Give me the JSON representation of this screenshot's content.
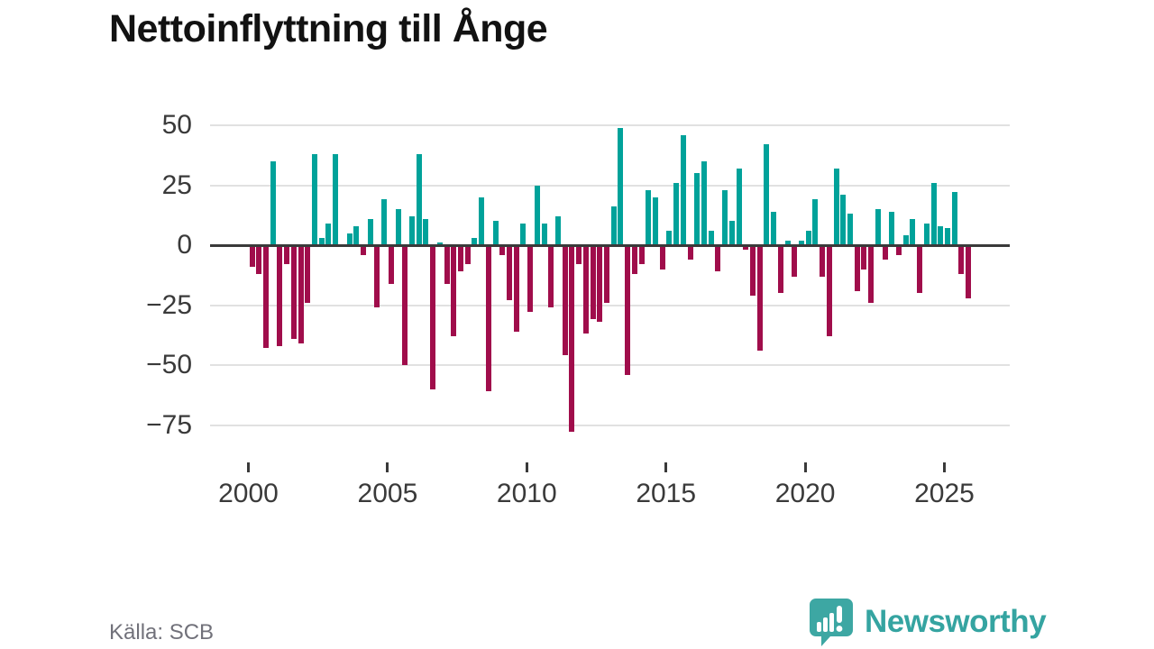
{
  "title": "Nettoinflyttning till Ånge",
  "source": {
    "label": "Källa: SCB"
  },
  "logo": {
    "brand": "Newsworthy",
    "icon": "newsworthy-speech-bubble-chart-icon"
  },
  "colors": {
    "positive": "#00a29a",
    "negative": "#a00d4b",
    "zero_line": "#3a3a3a",
    "gridline": "#e1e1e1",
    "axis_text": "#3a3a3a",
    "title_text": "#121212",
    "source_text": "#71717a",
    "logo_teal": "#35a4a1"
  },
  "chart_data": {
    "type": "bar",
    "title": "Nettoinflyttning till Ånge",
    "frequency": "quarterly",
    "x_start_year": 2000,
    "x_tick_years": [
      2000,
      2005,
      2010,
      2015,
      2020,
      2025
    ],
    "y_ticks": [
      {
        "value": 50,
        "label": "50"
      },
      {
        "value": 25,
        "label": "25"
      },
      {
        "value": 0,
        "label": "0"
      },
      {
        "value": -25,
        "label": "−25"
      },
      {
        "value": -50,
        "label": "−50"
      },
      {
        "value": -75,
        "label": "−75"
      }
    ],
    "ylim": [
      -85,
      55
    ],
    "grid": "horizontal",
    "legend": "none",
    "series_note": "net migration per quarter, teal = positive, dark red = negative",
    "values": [
      -9,
      -12,
      -43,
      35,
      -42,
      -8,
      -39,
      -41,
      -24,
      38,
      3,
      9,
      38,
      0,
      5,
      8,
      -4,
      11,
      -26,
      19,
      -16,
      15,
      -50,
      12,
      38,
      11,
      -60,
      1,
      -16,
      -38,
      -11,
      -8,
      3,
      20,
      -61,
      10,
      -4,
      -23,
      -36,
      9,
      -28,
      25,
      9,
      -26,
      12,
      -46,
      -78,
      -8,
      -37,
      -31,
      -32,
      -24,
      16,
      49,
      -54,
      -12,
      -8,
      23,
      20,
      -10,
      6,
      26,
      46,
      -6,
      30,
      35,
      6,
      -11,
      23,
      10,
      32,
      -2,
      -21,
      -44,
      42,
      14,
      -20,
      2,
      -13,
      2,
      6,
      19,
      -13,
      -38,
      32,
      21,
      13,
      -19,
      -10,
      -24,
      15,
      -6,
      14,
      -4,
      4,
      11,
      -20,
      9,
      26,
      8,
      7,
      22,
      -12,
      -22
    ]
  }
}
